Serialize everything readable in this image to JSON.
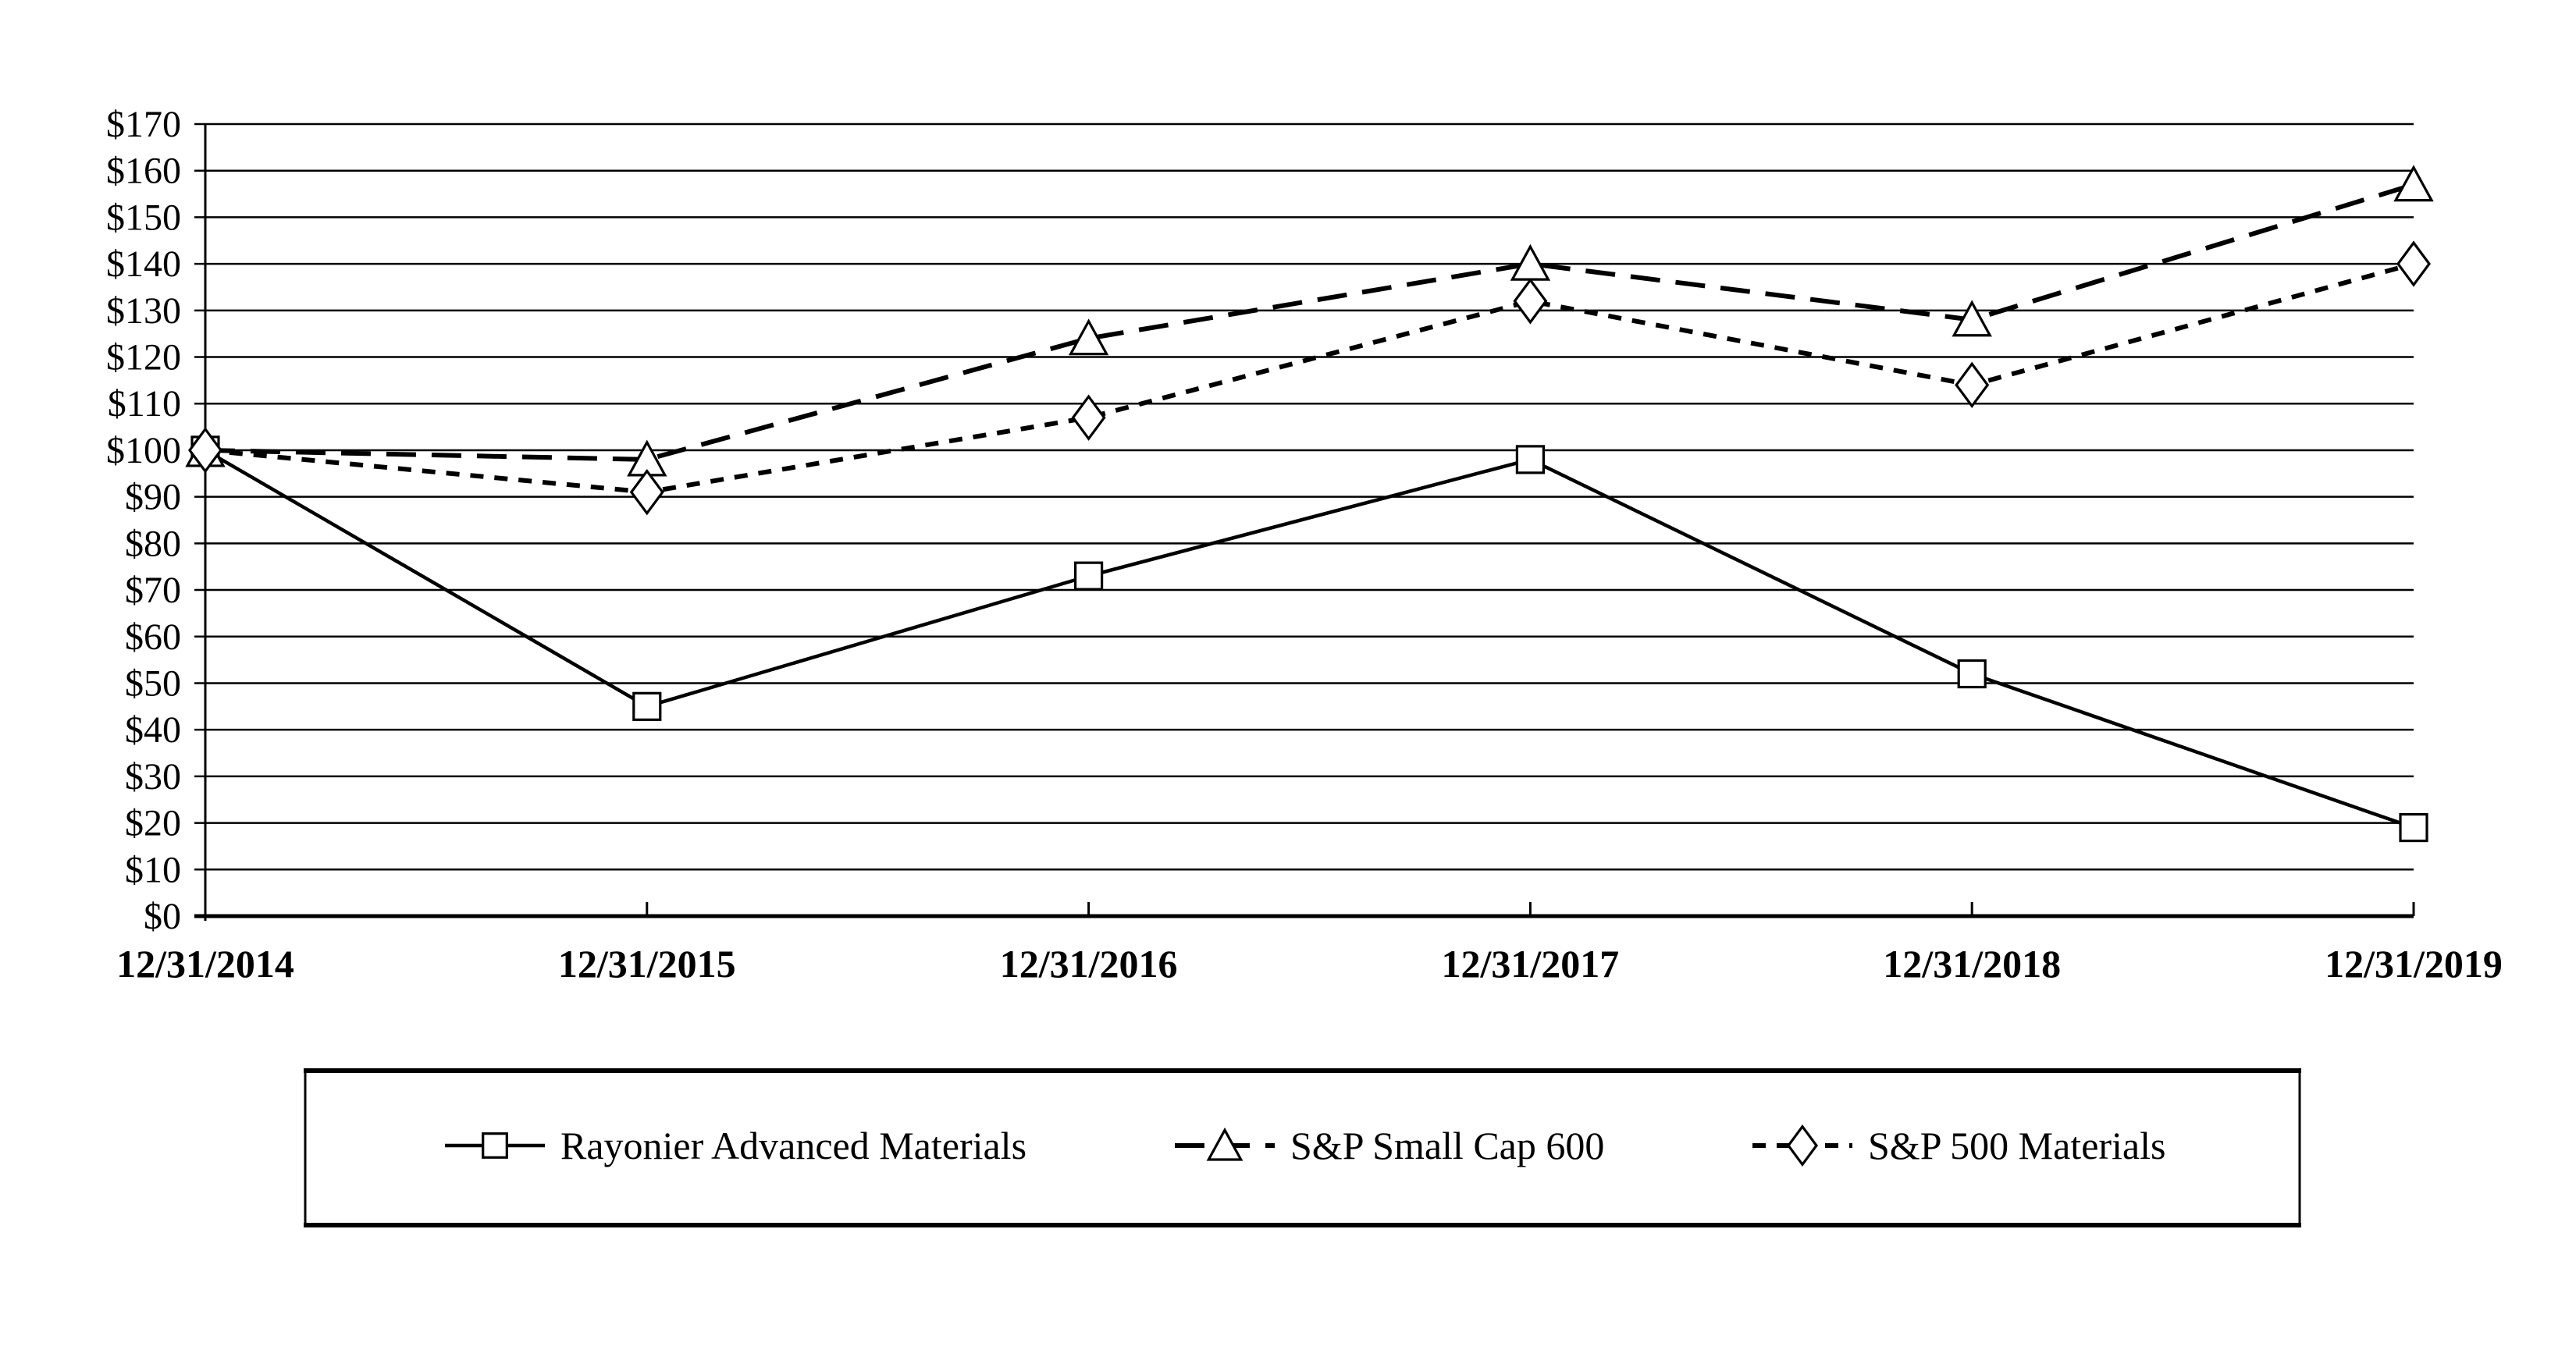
{
  "page": {
    "background_color": "#ffffff",
    "foreground_color": "#000000",
    "title": ""
  },
  "chart_data": {
    "type": "line",
    "title": "",
    "xlabel": "",
    "ylabel": "",
    "categories": [
      "12/31/2014",
      "12/31/2015",
      "12/31/2016",
      "12/31/2017",
      "12/31/2018",
      "12/31/2019"
    ],
    "y_axis": {
      "min": 0,
      "max": 170,
      "step": 10,
      "tick_prefix": "$",
      "tick_labels": [
        "$0",
        "$10",
        "$20",
        "$30",
        "$40",
        "$50",
        "$60",
        "$70",
        "$80",
        "$90",
        "$100",
        "$110",
        "$120",
        "$130",
        "$140",
        "$150",
        "$160",
        "$170"
      ]
    },
    "grid": true,
    "legend_position": "bottom",
    "series": [
      {
        "name": "Rayonier Advanced Materials",
        "marker": "square",
        "line_style": "solid",
        "color": "#000000",
        "values": [
          100,
          45,
          73,
          98,
          52,
          19
        ]
      },
      {
        "name": "S&P Small Cap 600",
        "marker": "triangle",
        "line_style": "long-dash",
        "color": "#000000",
        "values": [
          100,
          98,
          124,
          140,
          128,
          157
        ]
      },
      {
        "name": "S&P 500 Materials",
        "marker": "diamond",
        "line_style": "short-dash",
        "color": "#000000",
        "values": [
          100,
          91,
          107,
          132,
          114,
          140
        ]
      }
    ]
  }
}
